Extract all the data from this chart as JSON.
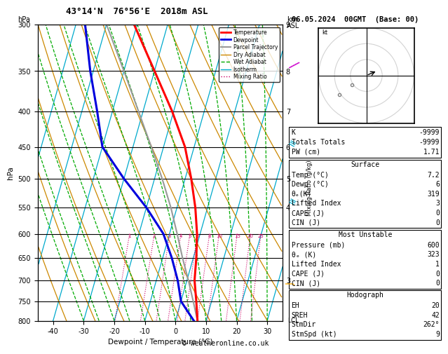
{
  "title_left": "43°14'N  76°56'E  2018m ASL",
  "title_date": "06.05.2024  00GMT  (Base: 00)",
  "xlabel": "Dewpoint / Temperature (°C)",
  "ylabel_left": "hPa",
  "pressure_levels": [
    300,
    350,
    400,
    450,
    500,
    550,
    600,
    650,
    700,
    750,
    800
  ],
  "xlim": [
    -45,
    35
  ],
  "p_min": 300,
  "p_max": 800,
  "xticks": [
    -40,
    -30,
    -20,
    -10,
    0,
    10,
    20,
    30
  ],
  "temp_color": "#ff0000",
  "dewp_color": "#0000dd",
  "parcel_color": "#999999",
  "dry_adiabat_color": "#cc8800",
  "wet_adiabat_color": "#00aa00",
  "isotherm_color": "#00aacc",
  "mixing_ratio_color": "#cc0066",
  "skew_factor": 28.0,
  "temp_profile_p": [
    800,
    750,
    700,
    650,
    600,
    550,
    500,
    450,
    400,
    350,
    300
  ],
  "temp_profile_t": [
    7.2,
    5.0,
    2.5,
    1.0,
    -1.0,
    -4.0,
    -8.0,
    -13.0,
    -20.5,
    -30.0,
    -41.0
  ],
  "dewp_profile_p": [
    800,
    750,
    700,
    650,
    600,
    550,
    500,
    450,
    400,
    350,
    300
  ],
  "dewp_profile_t": [
    6.0,
    0.0,
    -3.0,
    -7.0,
    -12.0,
    -20.0,
    -30.0,
    -40.0,
    -45.0,
    -51.0,
    -57.0
  ],
  "parcel_profile_p": [
    800,
    750,
    700,
    650,
    600,
    550,
    500,
    450,
    400,
    350,
    300
  ],
  "parcel_profile_t": [
    7.2,
    4.0,
    0.5,
    -3.5,
    -7.5,
    -12.0,
    -17.5,
    -24.0,
    -31.5,
    -40.0,
    -50.0
  ],
  "mixing_ratio_vals": [
    1,
    2,
    3,
    4,
    5,
    6,
    8,
    10,
    15,
    20,
    25
  ],
  "km_ticks_p": [
    300,
    350,
    400,
    450,
    500,
    550,
    700
  ],
  "km_ticks_v": [
    "9",
    "8",
    "7",
    "6",
    "5",
    "4",
    "3"
  ],
  "info_K": "-9999",
  "info_TT": "-9999",
  "info_PW": "1.71",
  "surface_temp": "7.2",
  "surface_dewp": "6",
  "surface_thetae": "319",
  "surface_li": "3",
  "surface_cape": "0",
  "surface_cin": "0",
  "mu_pressure": "600",
  "mu_thetae": "323",
  "mu_li": "1",
  "mu_cape": "0",
  "mu_cin": "0",
  "hodo_eh": "20",
  "hodo_sreh": "42",
  "hodo_stmdir": "262°",
  "hodo_stmspd": "9",
  "copyright": "© weatheronline.co.uk"
}
